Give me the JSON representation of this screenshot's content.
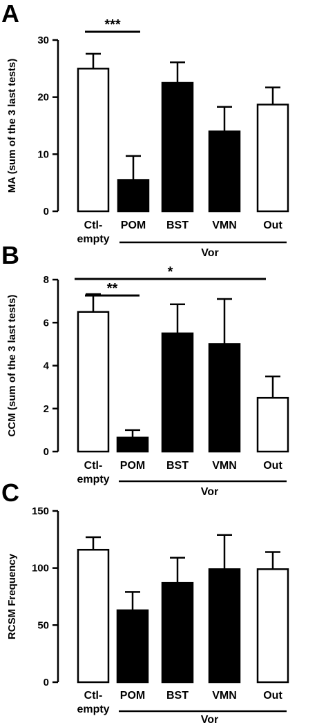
{
  "chart_data": [
    {
      "panel": "A",
      "type": "bar",
      "ylabel": "MA (sum of the 3 last tests)",
      "ylim": [
        0,
        30
      ],
      "yticks": [
        "0",
        "10",
        "20",
        "30"
      ],
      "categories": [
        "Ctl-empty",
        "POM",
        "BST",
        "VMN",
        "Out"
      ],
      "category_lines": [
        [
          "Ctl-",
          "empty"
        ],
        [
          "POM"
        ],
        [
          "BST"
        ],
        [
          "VMN"
        ],
        [
          "Out"
        ]
      ],
      "values": [
        25,
        5.5,
        22.5,
        14,
        18.7
      ],
      "errors": [
        2.6,
        4.2,
        3.6,
        4.3,
        3.0
      ],
      "fills": [
        "white",
        "black",
        "black",
        "black",
        "white"
      ],
      "group": {
        "label": "Vor",
        "from": 1,
        "to": 4
      },
      "significance": [
        {
          "label": "***",
          "from": 0,
          "to": 1,
          "level": 1
        }
      ]
    },
    {
      "panel": "B",
      "type": "bar",
      "ylabel": "CCM (sum of the 3 last tests)",
      "ylim": [
        0,
        8
      ],
      "yticks": [
        "0",
        "2",
        "4",
        "6",
        "8"
      ],
      "categories": [
        "Ctl-empty",
        "POM",
        "BST",
        "VMN",
        "Out"
      ],
      "category_lines": [
        [
          "Ctl-",
          "empty"
        ],
        [
          "POM"
        ],
        [
          "BST"
        ],
        [
          "VMN"
        ],
        [
          "Out"
        ]
      ],
      "values": [
        6.5,
        0.65,
        5.5,
        5.0,
        2.5
      ],
      "errors": [
        0.83,
        0.35,
        1.35,
        2.1,
        1.0
      ],
      "fills": [
        "white",
        "black",
        "black",
        "black",
        "white"
      ],
      "group": {
        "label": "Vor",
        "from": 1,
        "to": 4
      },
      "significance": [
        {
          "label": "*",
          "from": 0,
          "to": 4,
          "level": 2
        },
        {
          "label": "**",
          "from": 0,
          "to": 1,
          "level": 1
        }
      ]
    },
    {
      "panel": "C",
      "type": "bar",
      "ylabel": "RCSM Frequency",
      "ylim": [
        0,
        150
      ],
      "yticks": [
        "0",
        "50",
        "100",
        "150"
      ],
      "categories": [
        "Ctl-empty",
        "POM",
        "BST",
        "VMN",
        "Out"
      ],
      "category_lines": [
        [
          "Ctl-",
          "empty"
        ],
        [
          "POM"
        ],
        [
          "BST"
        ],
        [
          "VMN"
        ],
        [
          "Out"
        ]
      ],
      "values": [
        116,
        63,
        87,
        99,
        99
      ],
      "errors": [
        11,
        16,
        22,
        30,
        15
      ],
      "fills": [
        "white",
        "black",
        "black",
        "black",
        "white"
      ],
      "group": {
        "label": "Vor",
        "from": 1,
        "to": 4
      },
      "significance": []
    }
  ]
}
